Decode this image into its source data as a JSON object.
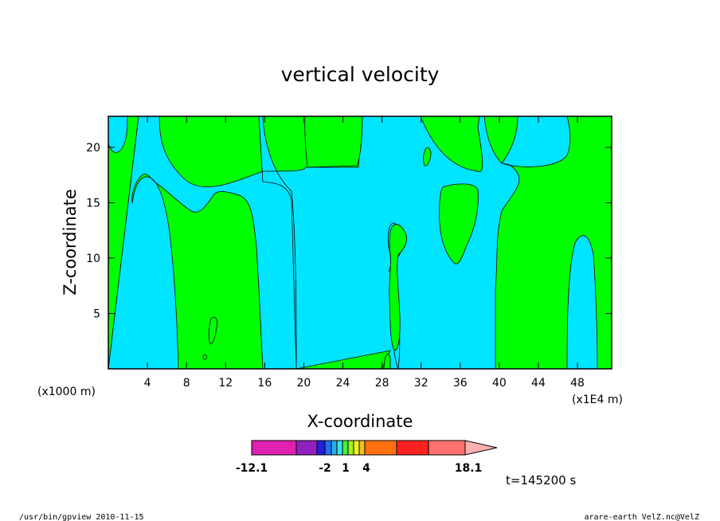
{
  "chart_data": {
    "type": "contour",
    "title": "vertical velocity",
    "xlabel": "X-coordinate",
    "ylabel": "Z-coordinate",
    "x_unit_left": "(x1000 m)",
    "x_unit_right": "(x1E4 m)",
    "xlim": [
      0,
      51.5
    ],
    "ylim": [
      0,
      22.8
    ],
    "x_ticks": [
      4,
      8,
      12,
      16,
      20,
      24,
      28,
      32,
      36,
      40,
      44,
      48
    ],
    "y_ticks": [
      5,
      10,
      15,
      20
    ],
    "time_label": "t=145200 s",
    "colorbar": {
      "min_label": "-12.1",
      "max_label": "18.1",
      "inner_labels": [
        "-2",
        "1",
        "4"
      ],
      "extend": "max",
      "colors": [
        "#e020b0",
        "#9020c0",
        "#2020e0",
        "#2070f0",
        "#20b0f0",
        "#40e0e0",
        "#40f040",
        "#a0f020",
        "#f0f020",
        "#f0c020",
        "#ff7010",
        "#ff2020",
        "#ff7070",
        "#ffb0b0"
      ]
    },
    "fill_colors": {
      "positive": "#00ff00",
      "negative": "#00e5ff"
    }
  },
  "footer": {
    "left": "/usr/bin/gpview  2010-11-15",
    "right": "arare-earth_VelZ.nc@VelZ"
  }
}
